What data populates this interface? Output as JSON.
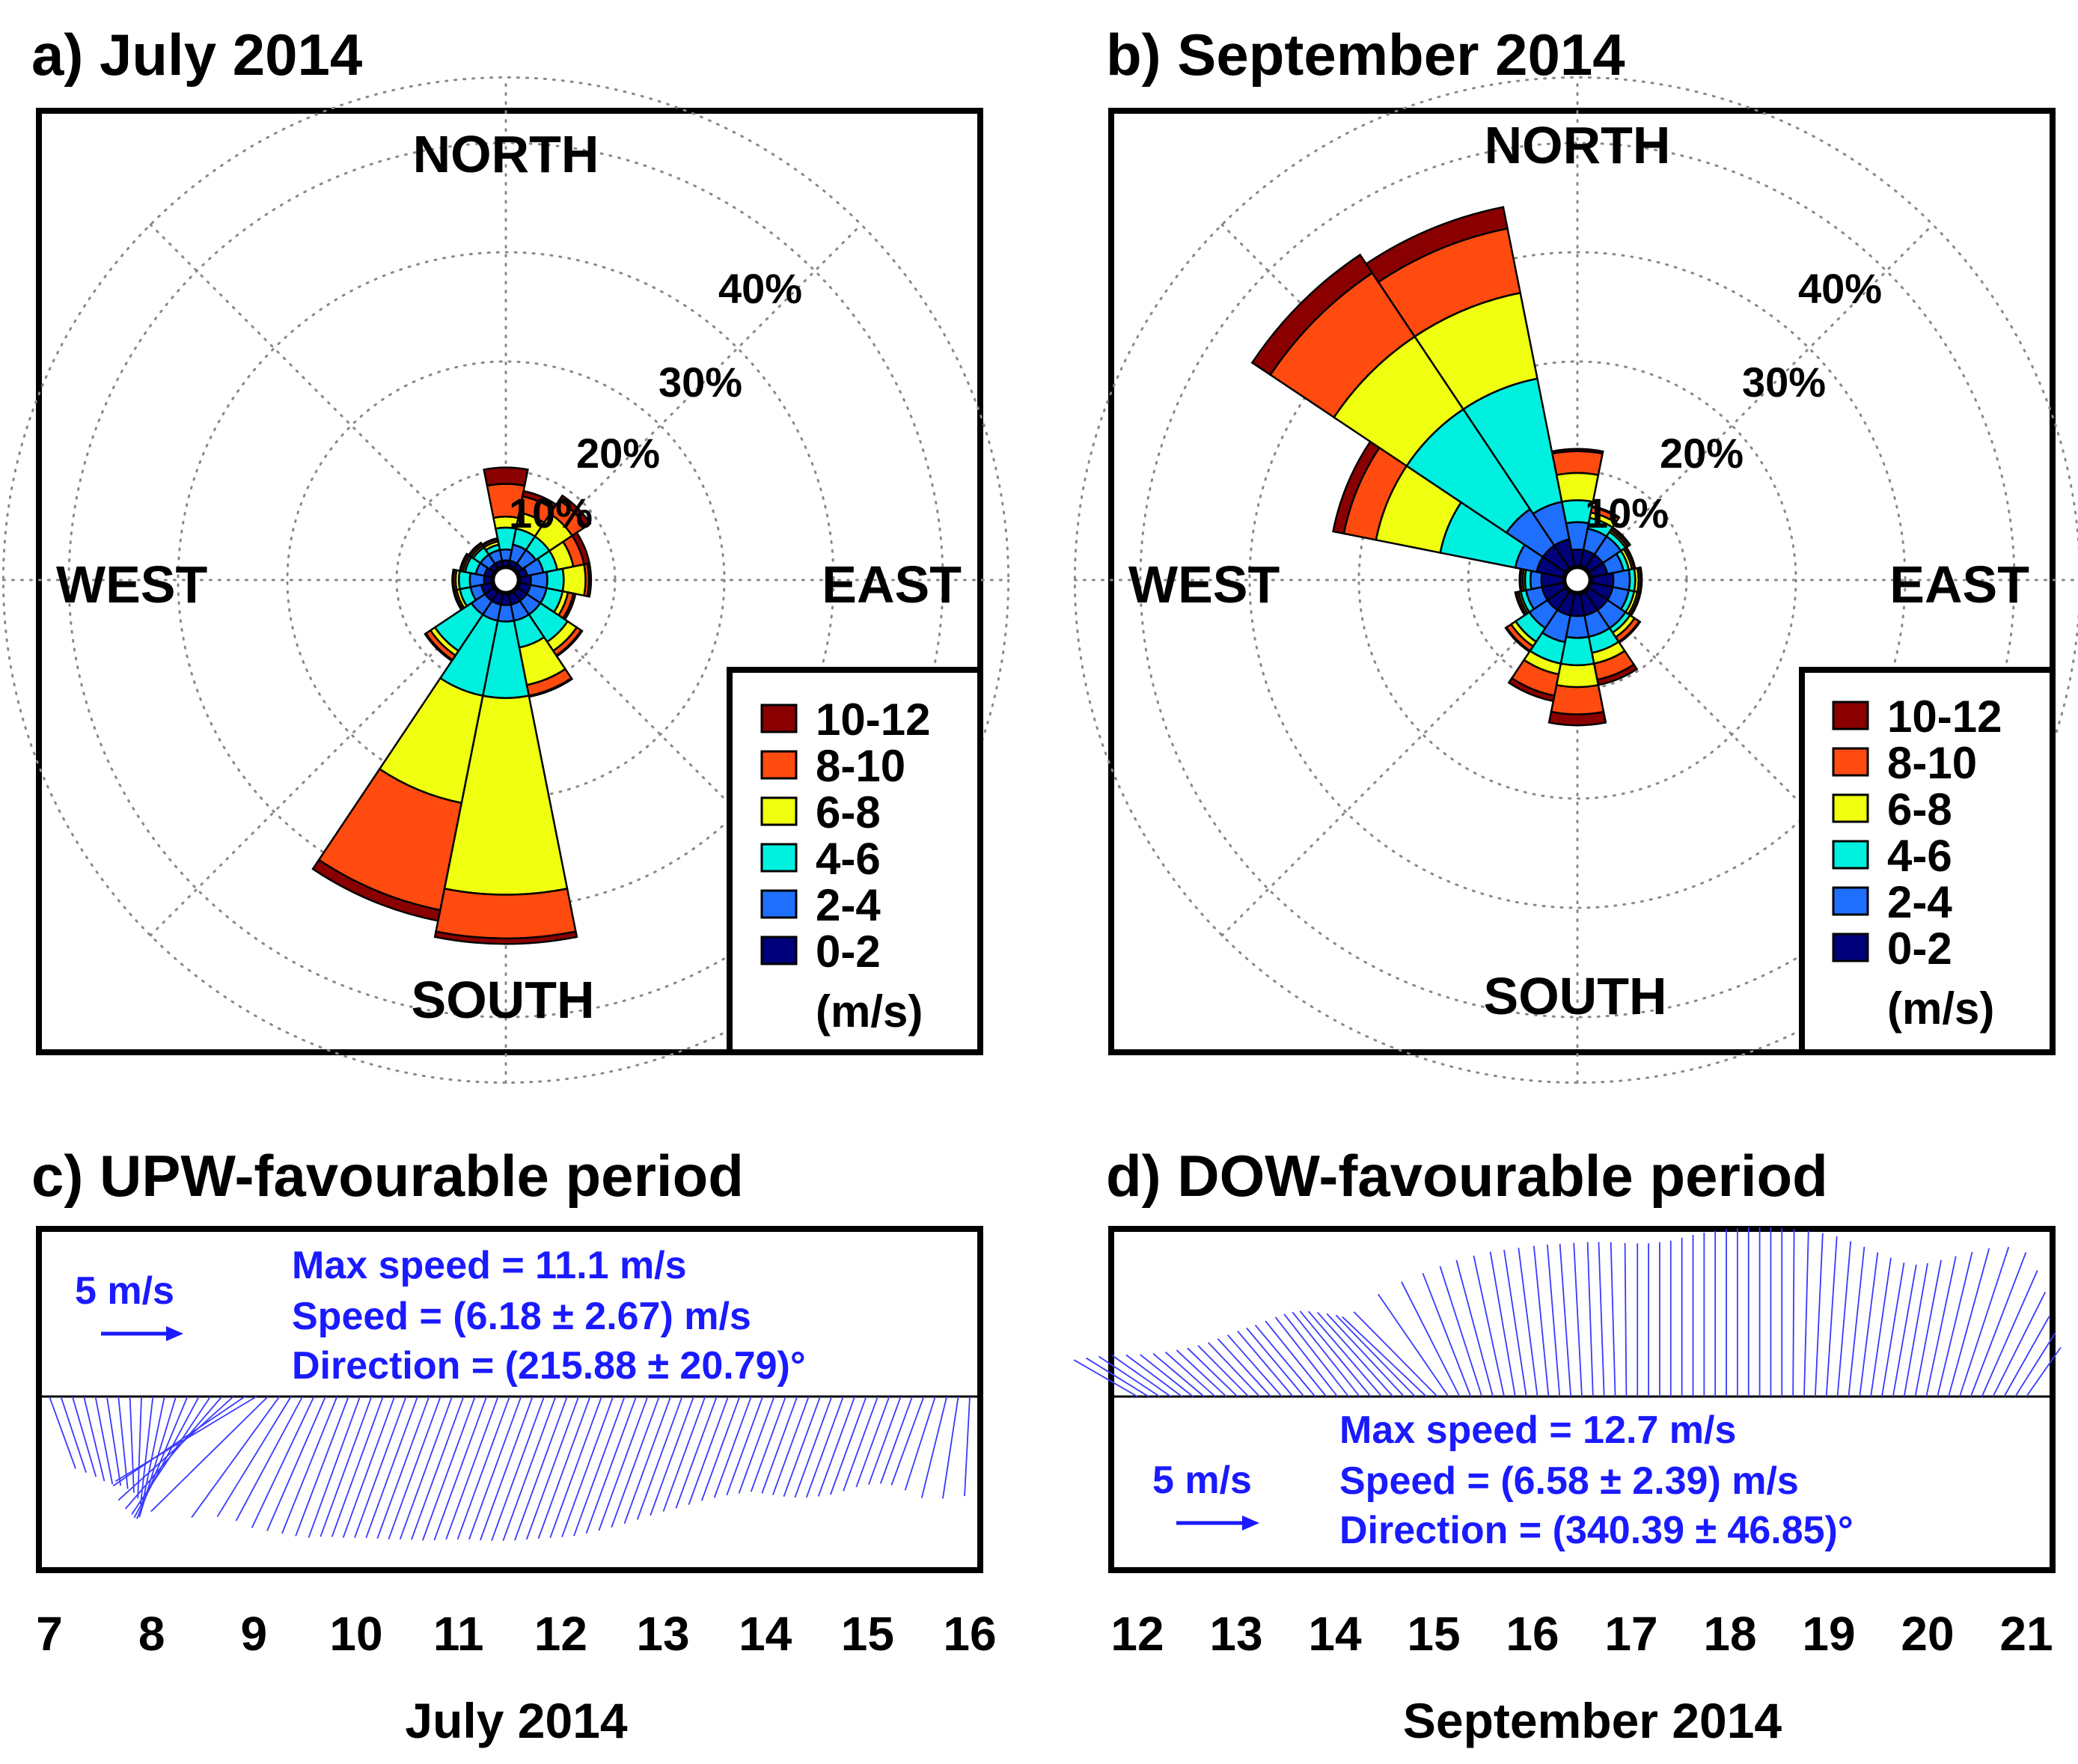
{
  "figure": {
    "panels": [
      "a) July 2014",
      "b) September 2014",
      "c) UPW-favourable period",
      "d) DOW-favourable period"
    ]
  },
  "chart_data": [
    {
      "type": "windrose",
      "panel": "a",
      "title": "a) July 2014",
      "compass": {
        "north": "NORTH",
        "south": "SOUTH",
        "east": "EAST",
        "west": "WEST"
      },
      "ring_labels": [
        "10%",
        "20%",
        "30%",
        "40%"
      ],
      "ring_values": [
        10,
        20,
        30,
        40
      ],
      "bin_labels": [
        "0-2",
        "2-4",
        "4-6",
        "6-8",
        "8-10",
        "10-12"
      ],
      "bin_colors": [
        "#00007a",
        "#1f6fff",
        "#00f0e0",
        "#f0ff10",
        "#ff4a10",
        "#8a0000"
      ],
      "unit": "(m/s)",
      "sector_width_deg": 22.5,
      "sectors": [
        {
          "dir": 0,
          "cum": [
            1.0,
            2.0,
            4.0,
            5.0,
            8.0,
            9.5
          ]
        },
        {
          "dir": 22.5,
          "cum": [
            1.0,
            2.5,
            4.0,
            5.5,
            7.0,
            7.5
          ]
        },
        {
          "dir": 45,
          "cum": [
            1.0,
            2.5,
            4.0,
            6.5,
            8.0,
            8.5
          ]
        },
        {
          "dir": 67.5,
          "cum": [
            1.2,
            2.7,
            4.0,
            5.5,
            6.5,
            7.0
          ]
        },
        {
          "dir": 90,
          "cum": [
            1.5,
            3.0,
            4.5,
            6.5,
            6.8,
            7.0
          ]
        },
        {
          "dir": 112.5,
          "cum": [
            1.5,
            3.0,
            4.5,
            5.0,
            5.5,
            5.7
          ]
        },
        {
          "dir": 135,
          "cum": [
            1.5,
            3.0,
            6.0,
            7.0,
            7.5,
            7.6
          ]
        },
        {
          "dir": 157.5,
          "cum": [
            1.5,
            3.0,
            5.5,
            9.0,
            10.0,
            10.1
          ]
        },
        {
          "dir": 180,
          "cum": [
            1.5,
            3.0,
            10.0,
            28.0,
            32.0,
            32.5
          ]
        },
        {
          "dir": 202.5,
          "cum": [
            1.5,
            3.0,
            10.0,
            20.0,
            30.0,
            31.0
          ]
        },
        {
          "dir": 225,
          "cum": [
            1.5,
            3.0,
            7.0,
            7.5,
            8.0,
            8.1
          ]
        },
        {
          "dir": 247.5,
          "cum": [
            1.5,
            2.5,
            3.5,
            3.8,
            4.0,
            4.1
          ]
        },
        {
          "dir": 270,
          "cum": [
            1.2,
            2.5,
            3.5,
            3.8,
            4.0,
            4.1
          ]
        },
        {
          "dir": 292.5,
          "cum": [
            1.2,
            2.0,
            3.0,
            3.2,
            3.4,
            3.5
          ]
        },
        {
          "dir": 315,
          "cum": [
            1.0,
            2.0,
            2.8,
            3.0,
            3.2,
            3.3
          ]
        },
        {
          "dir": 337.5,
          "cum": [
            1.0,
            2.0,
            2.5,
            2.8,
            3.0,
            3.1
          ]
        }
      ]
    },
    {
      "type": "windrose",
      "panel": "b",
      "title": "b) September 2014",
      "compass": {
        "north": "NORTH",
        "south": "SOUTH",
        "east": "EAST",
        "west": "WEST"
      },
      "ring_labels": [
        "10%",
        "20%",
        "30%",
        "40%"
      ],
      "ring_values": [
        10,
        20,
        30,
        40
      ],
      "bin_labels": [
        "0-2",
        "2-4",
        "4-6",
        "6-8",
        "8-10",
        "10-12"
      ],
      "bin_colors": [
        "#00007a",
        "#1f6fff",
        "#00f0e0",
        "#f0ff10",
        "#ff4a10",
        "#8a0000"
      ],
      "unit": "(m/s)",
      "sector_width_deg": 22.5,
      "sectors": [
        {
          "dir": 0,
          "cum": [
            2.0,
            4.5,
            6.5,
            9.0,
            11.0,
            11.2
          ]
        },
        {
          "dir": 22.5,
          "cum": [
            2.0,
            4.0,
            5.0,
            5.5,
            6.0,
            6.1
          ]
        },
        {
          "dir": 45,
          "cum": [
            2.0,
            4.0,
            4.5,
            4.7,
            4.9,
            5.0
          ]
        },
        {
          "dir": 67.5,
          "cum": [
            2.0,
            3.5,
            4.0,
            4.3,
            4.5,
            4.6
          ]
        },
        {
          "dir": 90,
          "cum": [
            2.5,
            4.0,
            4.5,
            4.8,
            5.0,
            5.1
          ]
        },
        {
          "dir": 112.5,
          "cum": [
            2.5,
            4.0,
            4.5,
            4.8,
            5.0,
            5.1
          ]
        },
        {
          "dir": 135,
          "cum": [
            2.5,
            4.5,
            5.0,
            5.5,
            6.0,
            6.1
          ]
        },
        {
          "dir": 157.5,
          "cum": [
            2.5,
            4.5,
            6.0,
            7.0,
            8.5,
            9.0
          ]
        },
        {
          "dir": 180,
          "cum": [
            2.5,
            4.5,
            7.0,
            9.0,
            11.5,
            12.5
          ]
        },
        {
          "dir": 202.5,
          "cum": [
            2.5,
            5.0,
            7.0,
            8.0,
            10.0,
            10.5
          ]
        },
        {
          "dir": 225,
          "cum": [
            2.5,
            4.5,
            6.0,
            6.5,
            7.0,
            7.1
          ]
        },
        {
          "dir": 247.5,
          "cum": [
            2.5,
            4.0,
            4.5,
            4.7,
            4.9,
            5.0
          ]
        },
        {
          "dir": 270,
          "cum": [
            2.5,
            3.5,
            4.0,
            4.2,
            4.4,
            4.5
          ]
        },
        {
          "dir": 292.5,
          "cum": [
            3.0,
            5.0,
            12.0,
            18.0,
            21.0,
            22.0
          ]
        },
        {
          "dir": 315,
          "cum": [
            3.0,
            7.0,
            18.0,
            26.0,
            33.0,
            35.0
          ]
        },
        {
          "dir": 337.5,
          "cum": [
            3.0,
            6.5,
            18.0,
            26.0,
            32.0,
            34.0
          ]
        }
      ]
    },
    {
      "type": "stickplot",
      "panel": "c",
      "title": "c) UPW-favourable period",
      "scale_label": "5 m/s",
      "stats": [
        "Max speed = 11.1 m/s",
        "Speed = (6.18 ± 2.67) m/s",
        "Direction = (215.88 ± 20.79)°"
      ],
      "x_ticks": [
        "7",
        "8",
        "9",
        "10",
        "11",
        "12",
        "13",
        "14",
        "15",
        "16"
      ],
      "x_values": [
        7,
        8,
        9,
        10,
        11,
        12,
        13,
        14,
        15,
        16
      ],
      "x_range": [
        7,
        16
      ],
      "xlabel": "July 2014",
      "series": {
        "days": [
          7.0,
          7.2,
          7.4,
          7.6,
          7.8,
          8.0,
          8.2,
          8.4,
          8.6,
          8.8,
          9.0,
          9.1,
          9.2,
          9.4,
          9.6,
          9.8,
          10.0,
          10.2,
          10.4,
          10.6,
          10.8,
          11.0,
          11.2,
          11.4,
          11.6,
          11.8,
          12.0,
          12.2,
          12.4,
          12.6,
          12.8,
          13.0,
          13.2,
          13.4,
          13.6,
          13.8,
          14.0,
          14.2,
          14.4,
          14.6,
          14.8,
          15.0,
          15.2,
          15.4,
          15.6,
          15.8,
          16.0
        ],
        "speed": [
          5.0,
          5.4,
          5.8,
          5.9,
          6.3,
          7.0,
          8.1,
          8.8,
          9.3,
          10.1,
          10.6,
          11.1,
          10.0,
          9.0,
          9.5,
          9.6,
          9.8,
          9.7,
          9.8,
          9.8,
          9.9,
          9.9,
          10.0,
          9.9,
          9.9,
          10.0,
          10.0,
          9.9,
          9.8,
          9.7,
          9.4,
          9.0,
          8.5,
          8.0,
          7.6,
          7.1,
          6.8,
          6.6,
          6.8,
          7.0,
          7.0,
          6.8,
          6.3,
          6.0,
          6.2,
          6.9,
          6.5
        ],
        "direction": [
          160,
          163,
          168,
          172,
          178,
          186,
          195,
          205,
          215,
          228,
          242,
          230,
          218,
          210,
          205,
          202,
          200,
          200,
          200,
          200,
          200,
          200,
          200,
          200,
          200,
          200,
          200,
          200,
          200,
          200,
          200,
          200,
          200,
          200,
          200,
          200,
          200,
          200,
          200,
          200,
          200,
          200,
          200,
          200,
          200,
          193,
          183
        ]
      }
    },
    {
      "type": "stickplot",
      "panel": "d",
      "title": "d) DOW-favourable period",
      "scale_label": "5 m/s",
      "stats": [
        "Max speed = 12.7 m/s",
        "Speed = (6.58 ± 2.39) m/s",
        "Direction = (340.39 ± 46.85)°"
      ],
      "x_ticks": [
        "12",
        "13",
        "14",
        "15",
        "16",
        "17",
        "18",
        "19",
        "20",
        "21"
      ],
      "x_values": [
        12,
        13,
        14,
        15,
        16,
        17,
        18,
        19,
        20,
        21
      ],
      "x_range": [
        12,
        21
      ],
      "xlabel": "September 2014",
      "series": {
        "days": [
          12.0,
          12.2,
          12.4,
          12.6,
          12.8,
          13.0,
          13.2,
          13.4,
          13.6,
          13.8,
          14.0,
          14.2,
          14.4,
          14.6,
          14.8,
          15.0,
          15.2,
          15.4,
          15.6,
          15.8,
          16.0,
          16.2,
          16.4,
          16.6,
          16.8,
          17.0,
          17.2,
          17.4,
          17.6,
          17.8,
          18.0,
          18.2,
          18.4,
          18.6,
          18.8,
          19.0,
          19.2,
          19.4,
          19.6,
          19.8,
          20.0,
          20.2,
          20.4,
          20.6,
          20.8,
          21.0
        ],
        "speed": [
          5.5,
          5.5,
          5.3,
          5.0,
          5.0,
          5.2,
          5.5,
          6.0,
          6.5,
          7.0,
          7.5,
          8.0,
          8.4,
          8.5,
          8.5,
          8.8,
          9.5,
          10.0,
          10.6,
          11.0,
          11.2,
          11.4,
          11.5,
          11.6,
          11.6,
          11.5,
          11.5,
          11.7,
          12.1,
          12.4,
          12.6,
          12.7,
          12.7,
          12.6,
          12.4,
          12.0,
          11.3,
          10.6,
          10.0,
          10.2,
          10.8,
          11.5,
          12.0,
          9.8,
          6.5,
          4.5
        ],
        "direction": [
          300,
          303,
          306,
          309,
          312,
          314,
          316,
          318,
          320,
          320,
          322,
          322,
          320,
          318,
          316,
          312,
          330,
          340,
          345,
          350,
          352,
          355,
          356,
          358,
          358,
          0,
          0,
          0,
          0,
          0,
          0,
          0,
          0,
          0,
          2,
          4,
          6,
          8,
          10,
          10,
          12,
          15,
          20,
          25,
          30,
          35
        ]
      }
    }
  ]
}
